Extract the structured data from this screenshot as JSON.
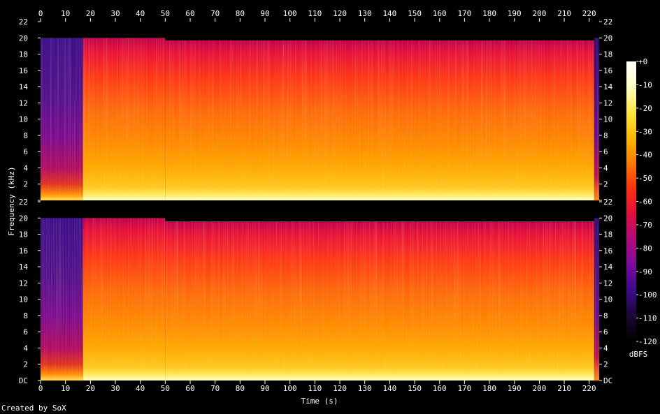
{
  "chart_data": {
    "type": "heatmap",
    "title": "",
    "xlabel": "Time (s)",
    "ylabel": "Frequency (kHz)",
    "xlim": [
      0,
      224
    ],
    "ylim_khz": [
      0,
      22
    ],
    "x_ticks": [
      0,
      10,
      20,
      30,
      40,
      50,
      60,
      70,
      80,
      90,
      100,
      110,
      120,
      130,
      140,
      150,
      160,
      170,
      180,
      190,
      200,
      210,
      220
    ],
    "y_tick_labels": [
      "DC",
      "2",
      "4",
      "6",
      "8",
      "10",
      "12",
      "14",
      "16",
      "18",
      "20",
      "22"
    ],
    "channels": [
      {
        "segments": [
          {
            "from": 0,
            "to": 17,
            "upper_cutoff_khz": 20,
            "level": "quiet intro"
          },
          {
            "from": 17,
            "to": 50,
            "upper_cutoff_khz": 20,
            "level": "loud"
          },
          {
            "from": 50,
            "to": 222,
            "upper_cutoff_khz": 19.7,
            "level": "loud, ragged cutoff"
          },
          {
            "from": 222,
            "to": 224,
            "upper_cutoff_khz": 20,
            "level": "fade out"
          }
        ]
      },
      {
        "segments": [
          {
            "from": 0,
            "to": 17,
            "upper_cutoff_khz": 20,
            "level": "quiet intro"
          },
          {
            "from": 17,
            "to": 50,
            "upper_cutoff_khz": 20,
            "level": "loud"
          },
          {
            "from": 50,
            "to": 222,
            "upper_cutoff_khz": 19.6,
            "level": "loud, ragged cutoff"
          },
          {
            "from": 222,
            "to": 224,
            "upper_cutoff_khz": 20,
            "level": "fade out"
          }
        ]
      }
    ],
    "colorbar": {
      "label": "dBFS",
      "range": [
        -120,
        0
      ],
      "tick_labels": [
        "+0",
        "-10",
        "-20",
        "-30",
        "-40",
        "-50",
        "-60",
        "-70",
        "-80",
        "-90",
        "-100",
        "-110",
        "-120"
      ],
      "colors": [
        "#000000",
        "#1a0830",
        "#3a0a8a",
        "#7a0aa0",
        "#b00a80",
        "#e01040",
        "#ff3010",
        "#ff7a00",
        "#ffb800",
        "#ffe840",
        "#ffffc0",
        "#ffffff"
      ]
    }
  },
  "footer": {
    "credit": "Created by SoX"
  }
}
